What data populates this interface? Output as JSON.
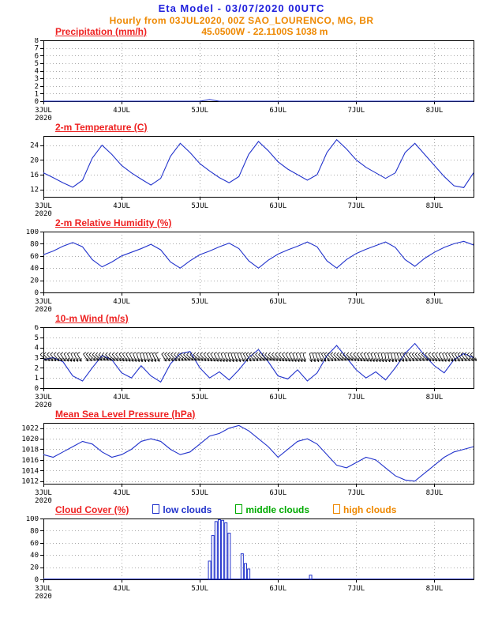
{
  "header": {
    "title": "Eta Model - 03/07/2020 00UTC",
    "subtitle": "Hourly from 03JUL2020, 00Z  SAO_LOURENCO, MG, BR",
    "location": "45.0500W - 22.1100S   1038  m"
  },
  "colors": {
    "title": "#2020dd",
    "accent_orange": "#ee8800",
    "panel_title": "#ee2222",
    "line_blue": "#2233cc",
    "grid": "#aaaaaa",
    "axis": "#000000",
    "barb": "#000000",
    "green": "#00aa00"
  },
  "x_axis": {
    "domain": [
      0,
      132
    ],
    "ticks": [
      {
        "t": 0,
        "label": "3JUL",
        "sublabel": "2020"
      },
      {
        "t": 24,
        "label": "4JUL"
      },
      {
        "t": 48,
        "label": "5JUL"
      },
      {
        "t": 72,
        "label": "6JUL"
      },
      {
        "t": 96,
        "label": "7JUL"
      },
      {
        "t": 120,
        "label": "8JUL"
      }
    ]
  },
  "x_hours": [
    0,
    3,
    6,
    9,
    12,
    15,
    18,
    21,
    24,
    27,
    30,
    33,
    36,
    39,
    42,
    45,
    48,
    51,
    54,
    57,
    60,
    63,
    66,
    69,
    72,
    75,
    78,
    81,
    84,
    87,
    90,
    93,
    96,
    99,
    102,
    105,
    108,
    111,
    114,
    117,
    120,
    123,
    126,
    129,
    132
  ],
  "chart_data": [
    {
      "type": "line",
      "title": "Precipitation (mm/h)",
      "ylim": [
        0,
        8
      ],
      "yticks": [
        0,
        1,
        2,
        3,
        4,
        5,
        6,
        7,
        8
      ],
      "values": [
        0,
        0,
        0,
        0,
        0,
        0,
        0,
        0,
        0,
        0,
        0,
        0,
        0,
        0,
        0,
        0,
        0,
        0.2,
        0,
        0,
        0,
        0,
        0,
        0,
        0,
        0,
        0,
        0,
        0,
        0,
        0,
        0,
        0,
        0,
        0,
        0,
        0,
        0,
        0,
        0,
        0,
        0,
        0,
        0,
        0
      ]
    },
    {
      "type": "line",
      "title": "2-m Temperature (C)",
      "ylim": [
        10,
        26.5
      ],
      "yticks": [
        12,
        16,
        20,
        24
      ],
      "values": [
        16.5,
        15.2,
        13.8,
        12.6,
        14.5,
        20.5,
        24.0,
        21.5,
        18.5,
        16.5,
        14.8,
        13.2,
        15.0,
        21.0,
        24.5,
        22.0,
        19.0,
        17.0,
        15.2,
        13.8,
        15.5,
        21.5,
        25.0,
        22.5,
        19.5,
        17.5,
        16.0,
        14.5,
        16.0,
        22.0,
        25.5,
        23.0,
        20.0,
        18.0,
        16.5,
        15.0,
        16.5,
        22.0,
        24.5,
        21.5,
        18.5,
        15.5,
        13.0,
        12.5,
        16.5
      ]
    },
    {
      "type": "line",
      "title": "2-m Relative Humidity (%)",
      "ylim": [
        0,
        100
      ],
      "yticks": [
        0,
        20,
        40,
        60,
        80,
        100
      ],
      "values": [
        62,
        68,
        76,
        82,
        75,
        54,
        42,
        50,
        60,
        66,
        72,
        79,
        70,
        50,
        40,
        52,
        62,
        68,
        75,
        81,
        72,
        52,
        40,
        53,
        63,
        70,
        76,
        83,
        75,
        52,
        40,
        54,
        64,
        71,
        77,
        83,
        74,
        54,
        43,
        56,
        66,
        74,
        80,
        84,
        78
      ]
    },
    {
      "type": "line+barbs",
      "title": "10-m Wind (m/s)",
      "ylim": [
        0,
        6
      ],
      "yticks": [
        0,
        1,
        2,
        3,
        4,
        5,
        6
      ],
      "barb_level": 3,
      "values": [
        2.8,
        3.0,
        2.6,
        1.2,
        0.7,
        2.0,
        3.2,
        2.8,
        1.5,
        1.0,
        2.2,
        1.2,
        0.6,
        2.4,
        3.4,
        3.6,
        2.0,
        1.0,
        1.6,
        0.8,
        1.8,
        3.0,
        3.8,
        2.6,
        1.2,
        0.9,
        1.8,
        0.7,
        1.5,
        3.2,
        4.2,
        3.0,
        1.8,
        1.0,
        1.6,
        0.8,
        2.0,
        3.4,
        4.4,
        3.2,
        2.2,
        1.5,
        2.8,
        3.4,
        3.0
      ],
      "barb_dirs": [
        100,
        105,
        110,
        120,
        115,
        100,
        95,
        100,
        110,
        120,
        130,
        125,
        115,
        105,
        100,
        95,
        100,
        110,
        120,
        130,
        125,
        110,
        100,
        95,
        105,
        115,
        125,
        135,
        125,
        110,
        100,
        95,
        105,
        115,
        125,
        135,
        130,
        115,
        105,
        100,
        110,
        120,
        115,
        105,
        100
      ]
    },
    {
      "type": "line",
      "title": "Mean Sea Level Pressure (hPa)",
      "ylim": [
        1011.5,
        1023
      ],
      "yticks": [
        1012,
        1014,
        1016,
        1018,
        1020,
        1022
      ],
      "values": [
        1017.0,
        1016.5,
        1017.5,
        1018.5,
        1019.5,
        1019.0,
        1017.5,
        1016.5,
        1017.0,
        1018.0,
        1019.5,
        1020.0,
        1019.5,
        1018.0,
        1017.0,
        1017.5,
        1019.0,
        1020.5,
        1021.0,
        1022.0,
        1022.5,
        1021.5,
        1020.0,
        1018.5,
        1016.5,
        1018.0,
        1019.5,
        1020.0,
        1019.0,
        1017.0,
        1015.0,
        1014.5,
        1015.5,
        1016.5,
        1016.0,
        1014.5,
        1013.0,
        1012.2,
        1012.0,
        1013.5,
        1015.0,
        1016.5,
        1017.5,
        1018.0,
        1018.5
      ]
    },
    {
      "type": "bars",
      "title": "Cloud Cover (%)",
      "ylim": [
        0,
        100
      ],
      "yticks": [
        0,
        20,
        40,
        60,
        80,
        100
      ],
      "legend": [
        {
          "label": "low clouds",
          "color": "#2233cc"
        },
        {
          "label": "middle clouds",
          "color": "#00aa00"
        },
        {
          "label": "high clouds",
          "color": "#ee8800"
        }
      ],
      "bars_low": [
        [
          51,
          30
        ],
        [
          52,
          72
        ],
        [
          53,
          95
        ],
        [
          54,
          98
        ],
        [
          55,
          97
        ],
        [
          56,
          93
        ],
        [
          57,
          76
        ],
        [
          61,
          42
        ],
        [
          62,
          26
        ],
        [
          63,
          17
        ],
        [
          82,
          7
        ]
      ],
      "bars_mid": [],
      "bars_high": [],
      "baseline": 0
    }
  ]
}
